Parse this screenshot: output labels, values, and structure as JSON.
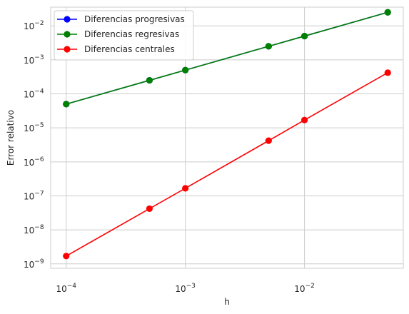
{
  "chart_data": {
    "type": "line",
    "xscale": "log",
    "yscale": "log",
    "x": [
      0.0001,
      0.0005,
      0.001,
      0.005,
      0.01,
      0.05
    ],
    "series": [
      {
        "name": "Diferencias progresivas",
        "color": "#0000ff",
        "values": [
          5e-05,
          0.00025,
          0.0005,
          0.0025,
          0.005,
          0.025
        ]
      },
      {
        "name": "Diferencias regresivas",
        "color": "#008000",
        "values": [
          5e-05,
          0.00025,
          0.0005,
          0.0025,
          0.005,
          0.025
        ]
      },
      {
        "name": "Diferencias centrales",
        "color": "#ff0000",
        "values": [
          1.7e-09,
          4.2e-08,
          1.67e-07,
          4.2e-06,
          1.7e-05,
          0.00042
        ]
      }
    ],
    "xticks": [
      {
        "value": 0.0001,
        "base": "10",
        "exp": "−4"
      },
      {
        "value": 0.001,
        "base": "10",
        "exp": "−3"
      },
      {
        "value": 0.01,
        "base": "10",
        "exp": "−2"
      }
    ],
    "yticks": [
      {
        "value": 1e-09,
        "base": "10",
        "exp": "−9"
      },
      {
        "value": 1e-08,
        "base": "10",
        "exp": "−8"
      },
      {
        "value": 1e-07,
        "base": "10",
        "exp": "−7"
      },
      {
        "value": 1e-06,
        "base": "10",
        "exp": "−6"
      },
      {
        "value": 1e-05,
        "base": "10",
        "exp": "−5"
      },
      {
        "value": 0.0001,
        "base": "10",
        "exp": "−4"
      },
      {
        "value": 0.001,
        "base": "10",
        "exp": "−3"
      },
      {
        "value": 0.01,
        "base": "10",
        "exp": "−2"
      }
    ],
    "xlim": [
      7.41e-05,
      0.0675
    ],
    "ylim": [
      7.4e-10,
      0.0355
    ],
    "xlabel": "h",
    "ylabel": "Error relativo",
    "grid": true,
    "legend_position": "top-left"
  }
}
